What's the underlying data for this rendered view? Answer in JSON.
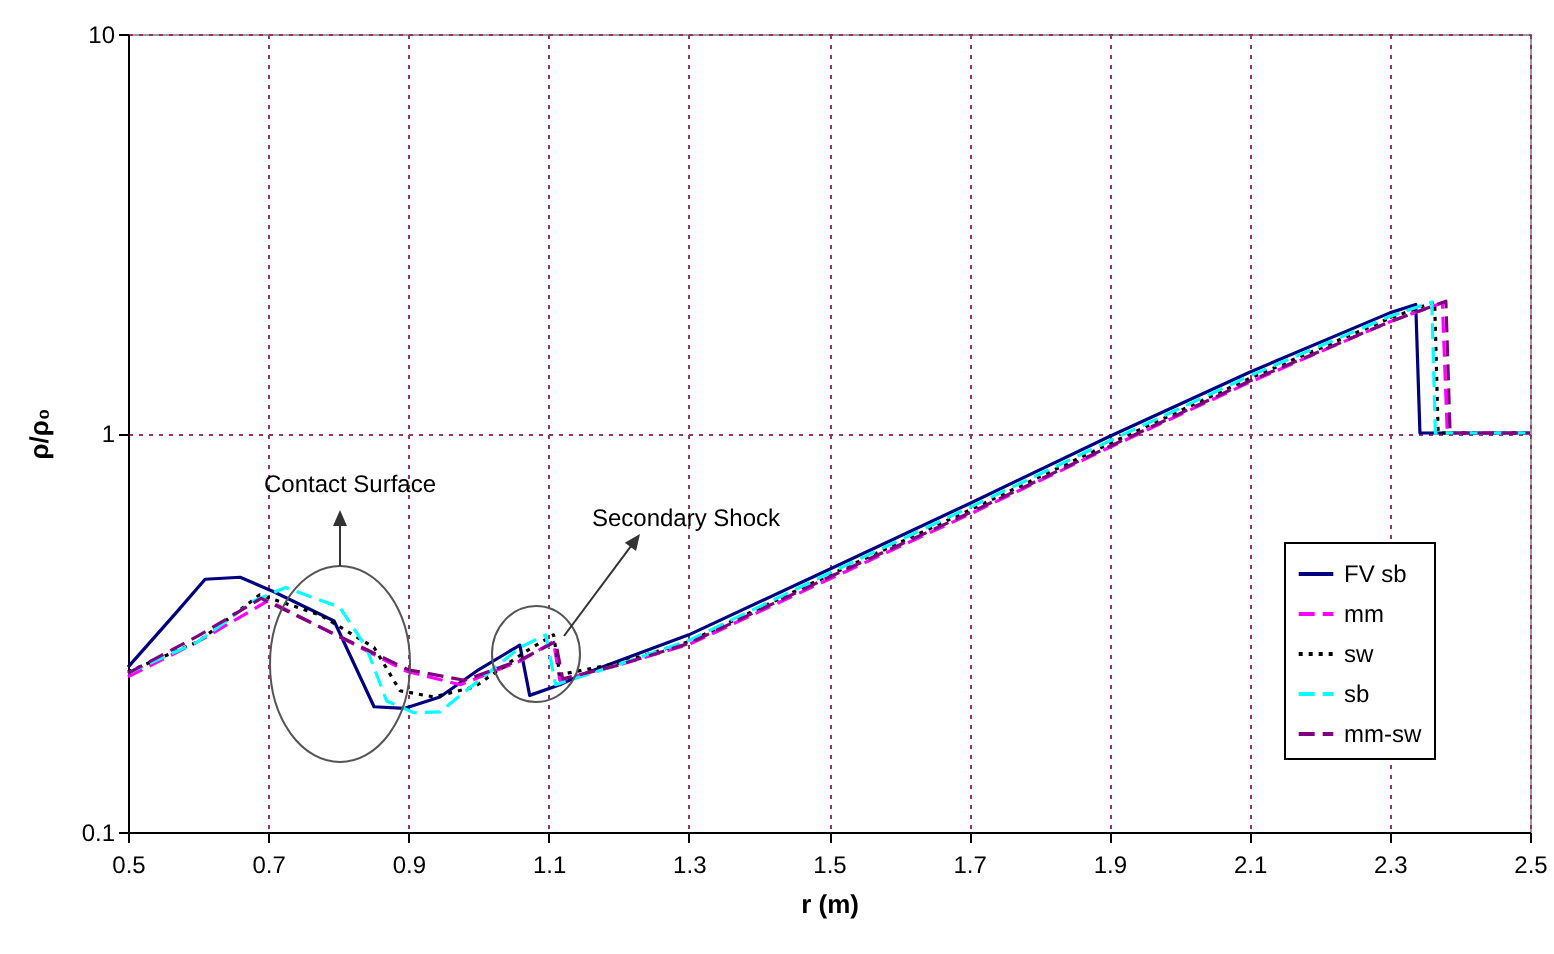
{
  "chart_data": {
    "type": "line",
    "xlabel": "r (m)",
    "ylabel": "ρ/ρ₀",
    "log": "y",
    "xlim": [
      0.5,
      2.5
    ],
    "xticks": [
      0.5,
      0.7,
      0.9,
      1.1,
      1.3,
      1.5,
      1.7,
      1.9,
      2.1,
      2.3,
      2.5
    ],
    "ylim": [
      0.1,
      10
    ],
    "yticks": [
      0.1,
      1,
      10
    ],
    "grid": true,
    "legend": "right",
    "marker": "none",
    "annotations": [
      "Contact Surface",
      "Secondary Shock"
    ],
    "series": [
      {
        "name": "FV sb",
        "color": "#000080",
        "line_style": "solid",
        "x": [
          0.5,
          0.566,
          0.61,
          0.66,
          0.708,
          0.794,
          0.851,
          0.894,
          0.945,
          1.0,
          1.059,
          1.073,
          1.116,
          1.145,
          1.3,
          1.5,
          1.7,
          1.9,
          2.1,
          2.3,
          2.337,
          2.343,
          2.5
        ],
        "values": [
          0.259,
          0.35,
          0.43,
          0.435,
          0.4,
          0.338,
          0.206,
          0.204,
          0.218,
          0.255,
          0.294,
          0.22,
          0.234,
          0.247,
          0.312,
          0.455,
          0.665,
          0.98,
          1.42,
          2.0,
          2.1,
          1.0,
          1.0
        ]
      },
      {
        "name": "mm",
        "color": "#ff00ff",
        "line_style": "dashed",
        "x": [
          0.5,
          0.6,
          0.7,
          0.802,
          0.897,
          0.974,
          1.059,
          1.107,
          1.116,
          1.2,
          1.3,
          1.5,
          1.7,
          1.9,
          2.1,
          2.3,
          2.375,
          2.382,
          2.5
        ],
        "values": [
          0.245,
          0.3,
          0.38,
          0.308,
          0.253,
          0.234,
          0.268,
          0.3,
          0.24,
          0.262,
          0.295,
          0.43,
          0.625,
          0.92,
          1.34,
          1.9,
          2.12,
          1.0,
          1.0
        ]
      },
      {
        "name": "sw",
        "color": "#000000",
        "line_style": "dotted",
        "x": [
          0.5,
          0.6,
          0.688,
          0.774,
          0.851,
          0.888,
          0.936,
          0.994,
          1.068,
          1.107,
          1.116,
          1.2,
          1.3,
          1.5,
          1.7,
          1.9,
          2.1,
          2.3,
          2.364,
          2.369,
          2.5
        ],
        "values": [
          0.252,
          0.3,
          0.393,
          0.35,
          0.29,
          0.226,
          0.218,
          0.231,
          0.284,
          0.312,
          0.248,
          0.265,
          0.3,
          0.44,
          0.64,
          0.94,
          1.37,
          1.94,
          2.13,
          1.0,
          1.0
        ]
      },
      {
        "name": "sb",
        "color": "#00ffff",
        "line_style": "dashed",
        "x": [
          0.5,
          0.6,
          0.68,
          0.725,
          0.802,
          0.84,
          0.869,
          0.908,
          0.945,
          1.059,
          1.096,
          1.11,
          1.2,
          1.3,
          1.5,
          1.7,
          1.9,
          2.1,
          2.3,
          2.36,
          2.365,
          2.5
        ],
        "values": [
          0.25,
          0.3,
          0.38,
          0.41,
          0.366,
          0.29,
          0.213,
          0.199,
          0.2,
          0.29,
          0.312,
          0.234,
          0.263,
          0.302,
          0.445,
          0.65,
          0.955,
          1.39,
          1.96,
          2.13,
          1.0,
          1.0
        ]
      },
      {
        "name": "mm-sw",
        "color": "#800080",
        "line_style": "dashed",
        "x": [
          0.5,
          0.6,
          0.69,
          0.8,
          0.9,
          0.98,
          1.06,
          1.11,
          1.12,
          1.2,
          1.3,
          1.5,
          1.7,
          1.9,
          2.1,
          2.3,
          2.38,
          2.386,
          2.5
        ],
        "values": [
          0.25,
          0.31,
          0.385,
          0.31,
          0.255,
          0.24,
          0.27,
          0.3,
          0.242,
          0.262,
          0.297,
          0.435,
          0.63,
          0.925,
          1.35,
          1.9,
          2.14,
          1.0,
          1.0
        ]
      }
    ]
  }
}
